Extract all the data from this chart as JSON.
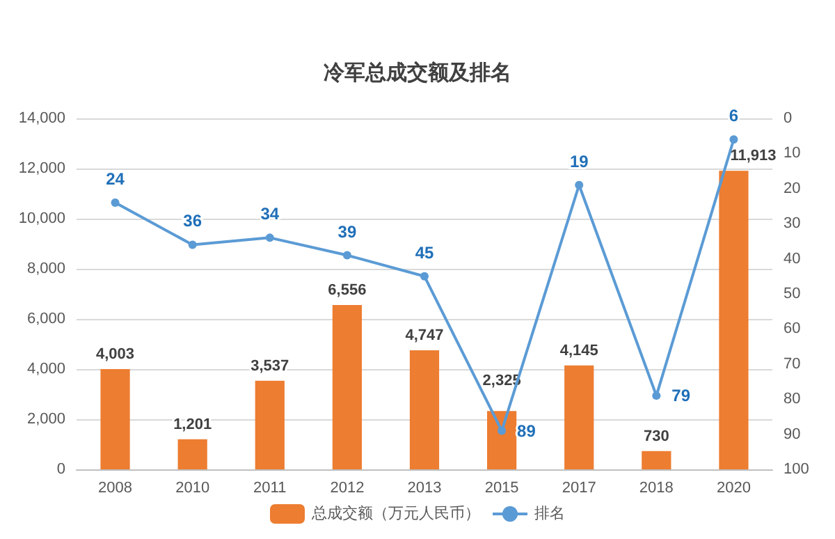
{
  "chart_data": {
    "type": "bar",
    "title": "冷军总成交额及排名",
    "categories": [
      "2008",
      "2010",
      "2011",
      "2012",
      "2013",
      "2015",
      "2017",
      "2018",
      "2020"
    ],
    "series": [
      {
        "name": "总成交额（万元人民币）",
        "type": "bar",
        "color": "#ed7d31",
        "values": [
          4003,
          1201,
          3537,
          6556,
          4747,
          2325,
          4145,
          730,
          11913
        ],
        "value_labels": [
          "4,003",
          "1,201",
          "3,537",
          "6,556",
          "4,747",
          "2,325",
          "4,145",
          "730",
          "11,913"
        ]
      },
      {
        "name": "排名",
        "type": "line",
        "axis": "y2",
        "color": "#5b9bd5",
        "values": [
          24,
          36,
          34,
          39,
          45,
          89,
          19,
          79,
          6
        ],
        "value_labels": [
          "24",
          "36",
          "34",
          "39",
          "45",
          "89",
          "19",
          "79",
          "6"
        ]
      }
    ],
    "ylim": [
      0,
      14000
    ],
    "yticks": [
      {
        "value": 0,
        "label": "0"
      },
      {
        "value": 2000,
        "label": "2,000"
      },
      {
        "value": 4000,
        "label": "4,000"
      },
      {
        "value": 6000,
        "label": "6,000"
      },
      {
        "value": 8000,
        "label": "8,000"
      },
      {
        "value": 10000,
        "label": "10,000"
      },
      {
        "value": 12000,
        "label": "12,000"
      },
      {
        "value": 14000,
        "label": "14,000"
      }
    ],
    "y2lim": [
      100,
      0
    ],
    "y2ticks": [
      0,
      10,
      20,
      30,
      40,
      50,
      60,
      70,
      80,
      90,
      100
    ],
    "grid": "y",
    "legend": "bottom",
    "marker": "circle",
    "line_style": "solid"
  }
}
